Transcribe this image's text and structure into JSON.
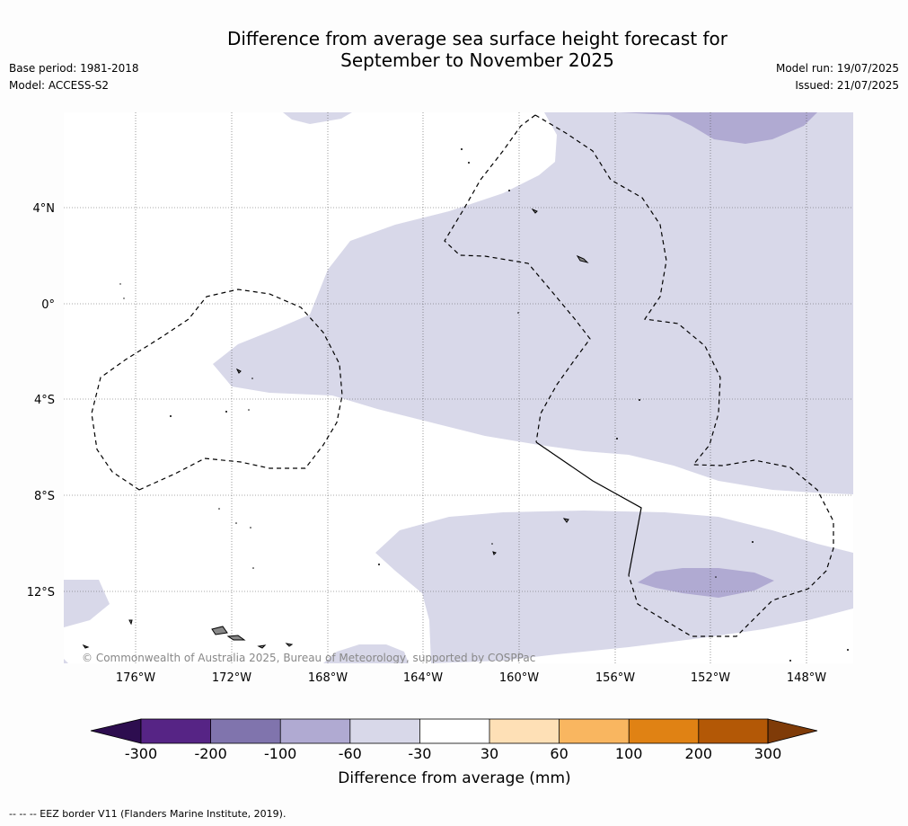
{
  "header": {
    "title_line1": "Difference from average sea surface height forecast for",
    "title_line2": "September to November 2025",
    "base_period": "Base period: 1981-2018",
    "model": "Model: ACCESS-S2",
    "model_run": "Model run: 19/07/2025",
    "issued": "Issued: 21/07/2025"
  },
  "map": {
    "lat_labels": [
      "4°N",
      "0°",
      "4°S",
      "8°S",
      "12°S"
    ],
    "lon_labels": [
      "176°W",
      "172°W",
      "168°W",
      "164°W",
      "160°W",
      "156°W",
      "152°W",
      "148°W"
    ],
    "copyright": "© Commonwealth of Australia 2025, Bureau of Meteorology, supported by COSPPac",
    "colors": {
      "light_purple": "#d8d8e9",
      "mid_purple": "#b0aad2",
      "land": "#888888",
      "grid": "#555555",
      "eez": "#000000"
    }
  },
  "colorbar": {
    "title": "Difference from average (mm)",
    "tick_labels": [
      "-300",
      "-200",
      "-100",
      "-60",
      "-30",
      "30",
      "60",
      "100",
      "200",
      "300"
    ],
    "colors": [
      "#2d0d4f",
      "#562485",
      "#8074ad",
      "#b0aad2",
      "#d8d8e9",
      "#ffffff",
      "#fee0b6",
      "#f9b660",
      "#e08214",
      "#b35806",
      "#7f3b08"
    ]
  },
  "footer": {
    "legend_text": "--  --  -- EEZ border V11 (Flanders Marine Institute, 2019)."
  }
}
